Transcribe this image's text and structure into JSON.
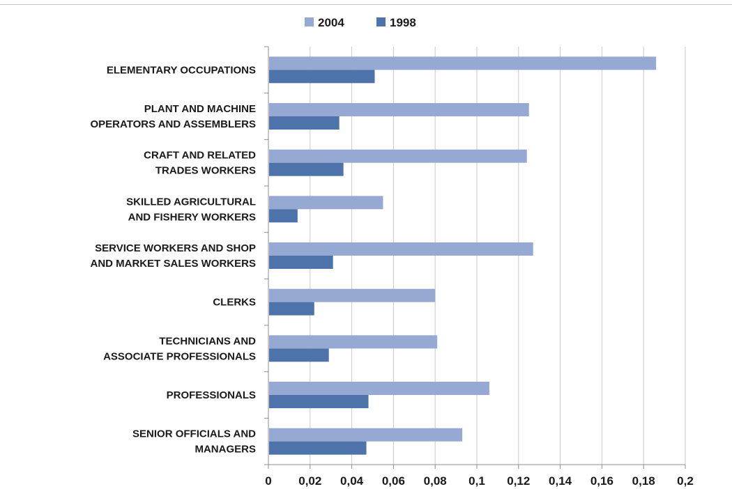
{
  "colors": {
    "s2004": "#95a9d2",
    "s1998": "#4d73aa",
    "grid": "#c9c9c9",
    "axis": "#8c8c8c"
  },
  "chart_data": {
    "type": "bar",
    "orientation": "horizontal",
    "title": "",
    "xlabel": "",
    "ylabel": "",
    "xlim": [
      0,
      0.2
    ],
    "grid": true,
    "legend": "top",
    "x_ticks": [
      "0",
      "0,02",
      "0,04",
      "0,06",
      "0,08",
      "0,1",
      "0,12",
      "0,14",
      "0,16",
      "0,18",
      "0,2"
    ],
    "categories": [
      [
        "ELEMENTARY OCCUPATIONS"
      ],
      [
        "PLANT AND MACHINE",
        "OPERATORS AND ASSEMBLERS"
      ],
      [
        "CRAFT AND RELATED",
        "TRADES WORKERS"
      ],
      [
        "SKILLED AGRICULTURAL",
        "AND FISHERY WORKERS"
      ],
      [
        "SERVICE WORKERS AND SHOP",
        "AND MARKET SALES WORKERS"
      ],
      [
        "CLERKS"
      ],
      [
        "TECHNICIANS AND",
        "ASSOCIATE PROFESSIONALS"
      ],
      [
        "PROFESSIONALS"
      ],
      [
        "SENIOR OFFICIALS AND",
        "MANAGERS"
      ]
    ],
    "series": [
      {
        "name": "2004",
        "values": [
          0.186,
          0.125,
          0.124,
          0.055,
          0.127,
          0.08,
          0.081,
          0.106,
          0.093
        ]
      },
      {
        "name": "1998",
        "values": [
          0.051,
          0.034,
          0.036,
          0.014,
          0.031,
          0.022,
          0.029,
          0.048,
          0.047
        ]
      }
    ]
  }
}
